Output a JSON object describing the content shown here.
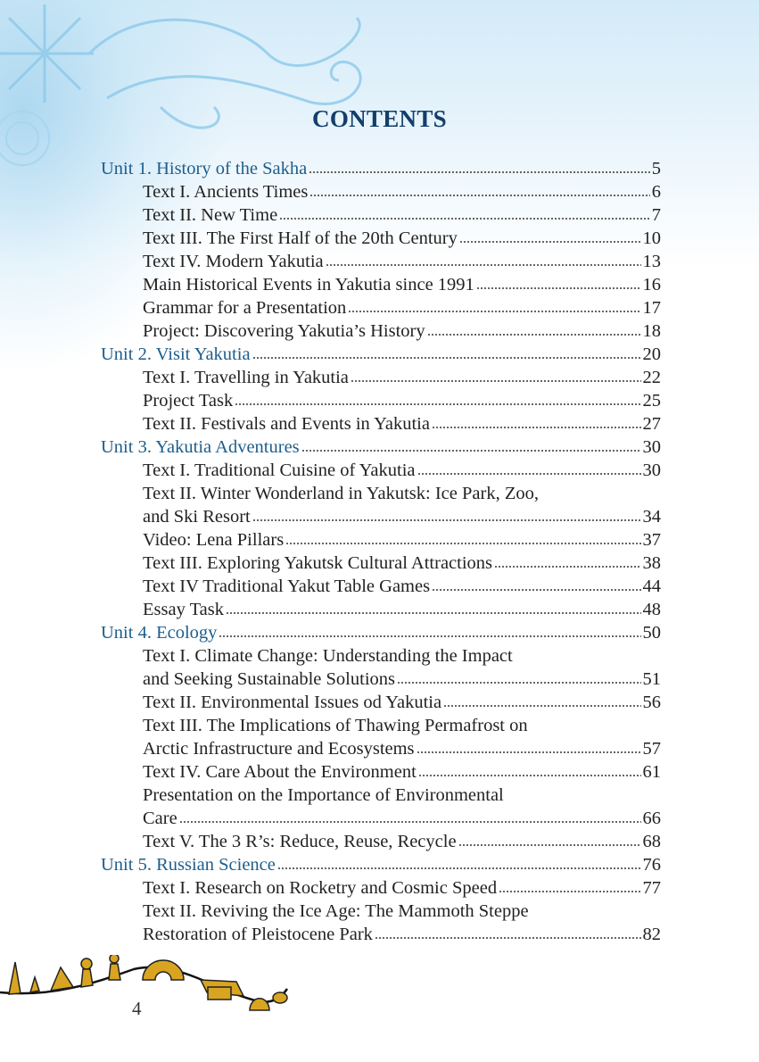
{
  "title": "CONTENTS",
  "page_number": "4",
  "entries": [
    {
      "level": "unit",
      "lines": [
        "Unit 1. History of the Sakha"
      ],
      "page": "5"
    },
    {
      "level": "sub",
      "lines": [
        "Text I. Ancients Times"
      ],
      "page": "6"
    },
    {
      "level": "sub",
      "lines": [
        "Text II. New Time"
      ],
      "page": "7"
    },
    {
      "level": "sub",
      "lines": [
        "Text III. The First Half of the 20th Century"
      ],
      "page": "10"
    },
    {
      "level": "sub",
      "lines": [
        "Text IV. Modern Yakutia"
      ],
      "page": "13"
    },
    {
      "level": "sub",
      "lines": [
        "Main Historical Events in Yakutia since 1991"
      ],
      "page": "16"
    },
    {
      "level": "sub",
      "lines": [
        "Grammar for a Presentation"
      ],
      "page": "17"
    },
    {
      "level": "sub",
      "lines": [
        "Project: Discovering Yakutia’s History"
      ],
      "page": "18"
    },
    {
      "level": "unit",
      "lines": [
        "Unit 2. Visit Yakutia"
      ],
      "page": "20"
    },
    {
      "level": "sub",
      "lines": [
        "Text I. Travelling in Yakutia"
      ],
      "page": "22"
    },
    {
      "level": "sub",
      "lines": [
        "Project Task"
      ],
      "page": "25"
    },
    {
      "level": "sub",
      "lines": [
        "Text II. Festivals and Events in Yakutia"
      ],
      "page": "27"
    },
    {
      "level": "unit",
      "lines": [
        "Unit 3. Yakutia Adventures"
      ],
      "page": "30"
    },
    {
      "level": "sub",
      "lines": [
        "Text I. Traditional Cuisine of Yakutia"
      ],
      "page": "30"
    },
    {
      "level": "sub",
      "lines": [
        "Text II. Winter Wonderland in Yakutsk: Ice Park, Zoo,",
        "and Ski Resort"
      ],
      "page": "34"
    },
    {
      "level": "sub",
      "lines": [
        "Video: Lena Pillars"
      ],
      "page": "37"
    },
    {
      "level": "sub",
      "lines": [
        "Text III. Exploring Yakutsk Cultural Attractions"
      ],
      "page": "38"
    },
    {
      "level": "sub",
      "lines": [
        "Text IV Traditional Yakut Table Games"
      ],
      "page": "44"
    },
    {
      "level": "sub",
      "lines": [
        "Essay Task"
      ],
      "page": "48"
    },
    {
      "level": "unit",
      "lines": [
        "Unit 4. Ecology"
      ],
      "page": "50"
    },
    {
      "level": "sub",
      "lines": [
        "Text I. Climate Change: Understanding the Impact",
        "and Seeking Sustainable Solutions"
      ],
      "page": "51"
    },
    {
      "level": "sub",
      "lines": [
        "Text II. Environmental Issues od Yakutia"
      ],
      "page": "56"
    },
    {
      "level": "sub",
      "lines": [
        "Text III. The Implications of Thawing Permafrost on",
        "Arctic Infrastructure and Ecosystems"
      ],
      "page": "57"
    },
    {
      "level": "sub",
      "lines": [
        "Text IV. Care About the Environment"
      ],
      "page": "61"
    },
    {
      "level": "sub",
      "lines": [
        "Presentation on the Importance of Environmental",
        "Care"
      ],
      "page": "66"
    },
    {
      "level": "sub",
      "lines": [
        "Text V. The 3 R’s: Reduce, Reuse, Recycle"
      ],
      "page": "68"
    },
    {
      "level": "unit",
      "lines": [
        "Unit 5. Russian Science"
      ],
      "page": "76"
    },
    {
      "level": "sub",
      "lines": [
        "Text I. Research on Rocketry and Cosmic Speed"
      ],
      "page": "77"
    },
    {
      "level": "sub",
      "lines": [
        "Text II. Reviving the Ice Age: The Mammoth Steppe",
        "Restoration of Pleistocene Park"
      ],
      "page": "82"
    }
  ]
}
